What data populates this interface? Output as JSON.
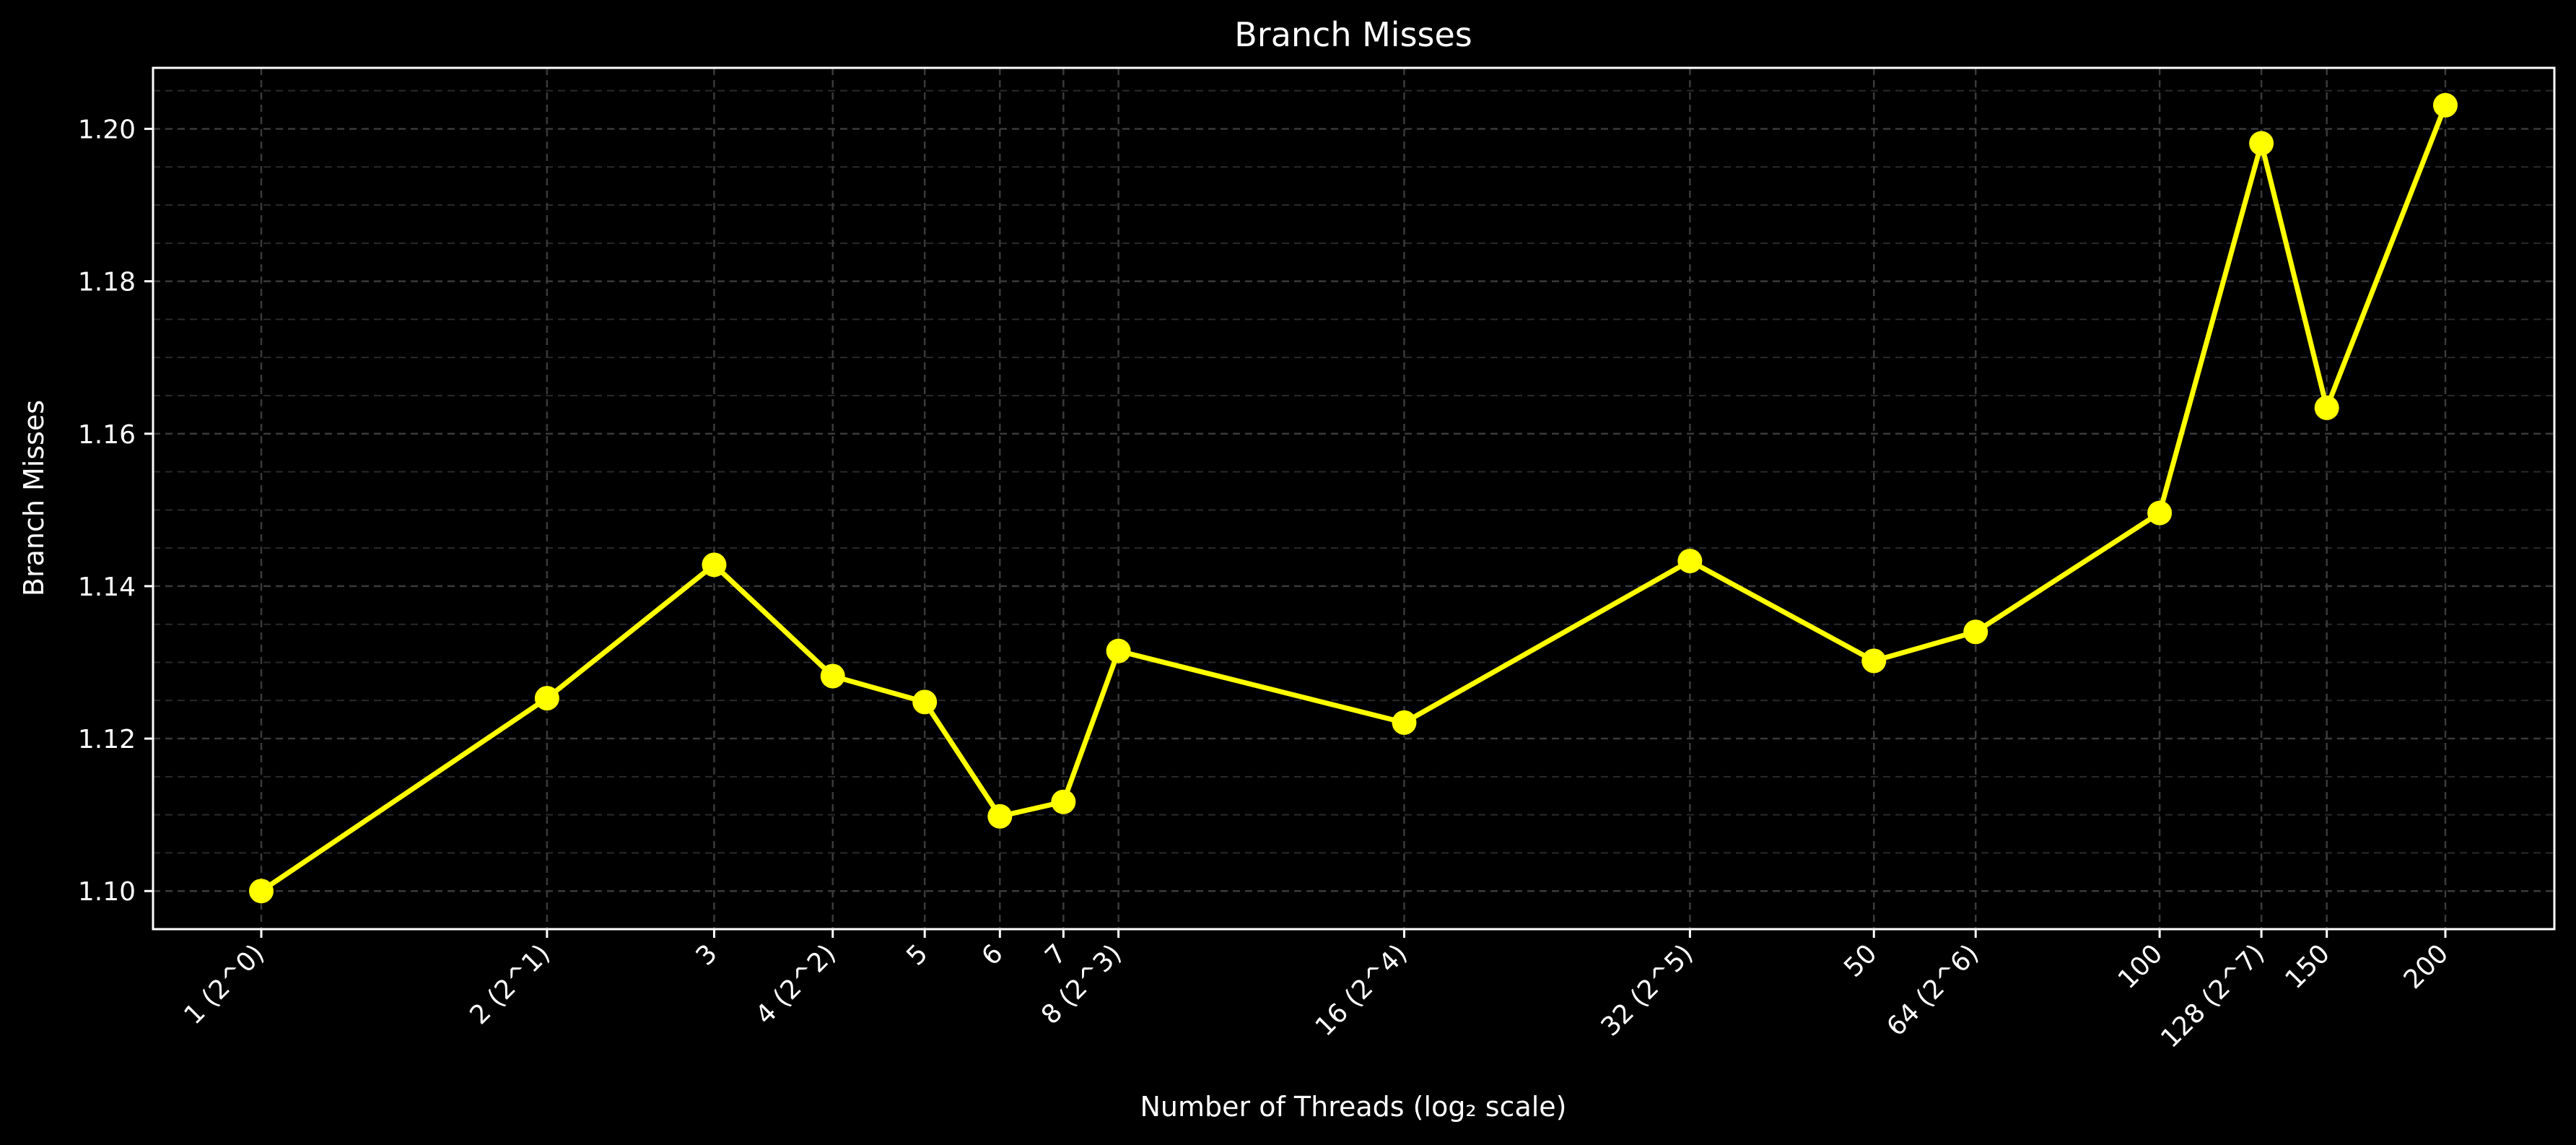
{
  "chart_data": {
    "type": "line",
    "title": "Branch Misses",
    "xlabel": "Number of Threads (log₂ scale)",
    "ylabel": "Branch Misses",
    "x_scale": "log2",
    "grid": true,
    "ylim": [
      1.095,
      1.208
    ],
    "y_ticks": [
      1.1,
      1.12,
      1.14,
      1.16,
      1.18,
      1.2
    ],
    "y_tick_labels": [
      "1.10",
      "1.12",
      "1.14",
      "1.16",
      "1.18",
      "1.20"
    ],
    "x_ticks": [
      1,
      2,
      3,
      4,
      5,
      6,
      7,
      8,
      16,
      32,
      50,
      64,
      100,
      128,
      150,
      200
    ],
    "x_tick_labels": [
      "1 (2^0)",
      "2 (2^1)",
      "3",
      "4 (2^2)",
      "5",
      "6",
      "7",
      "8 (2^3)",
      "16 (2^4)",
      "32 (2^5)",
      "50",
      "64 (2^6)",
      "100",
      "128 (2^7)",
      "150",
      "200"
    ],
    "series": [
      {
        "color": "#ffff00",
        "x": [
          1,
          2,
          3,
          4,
          5,
          6,
          7,
          8,
          16,
          32,
          50,
          64,
          100,
          128,
          150,
          200
        ],
        "y": [
          1.1,
          1.1253,
          1.1428,
          1.1282,
          1.1248,
          1.1098,
          1.1117,
          1.1315,
          1.1221,
          1.1433,
          1.1302,
          1.134,
          1.1496,
          1.1981,
          1.1634,
          1.2031
        ]
      }
    ]
  }
}
